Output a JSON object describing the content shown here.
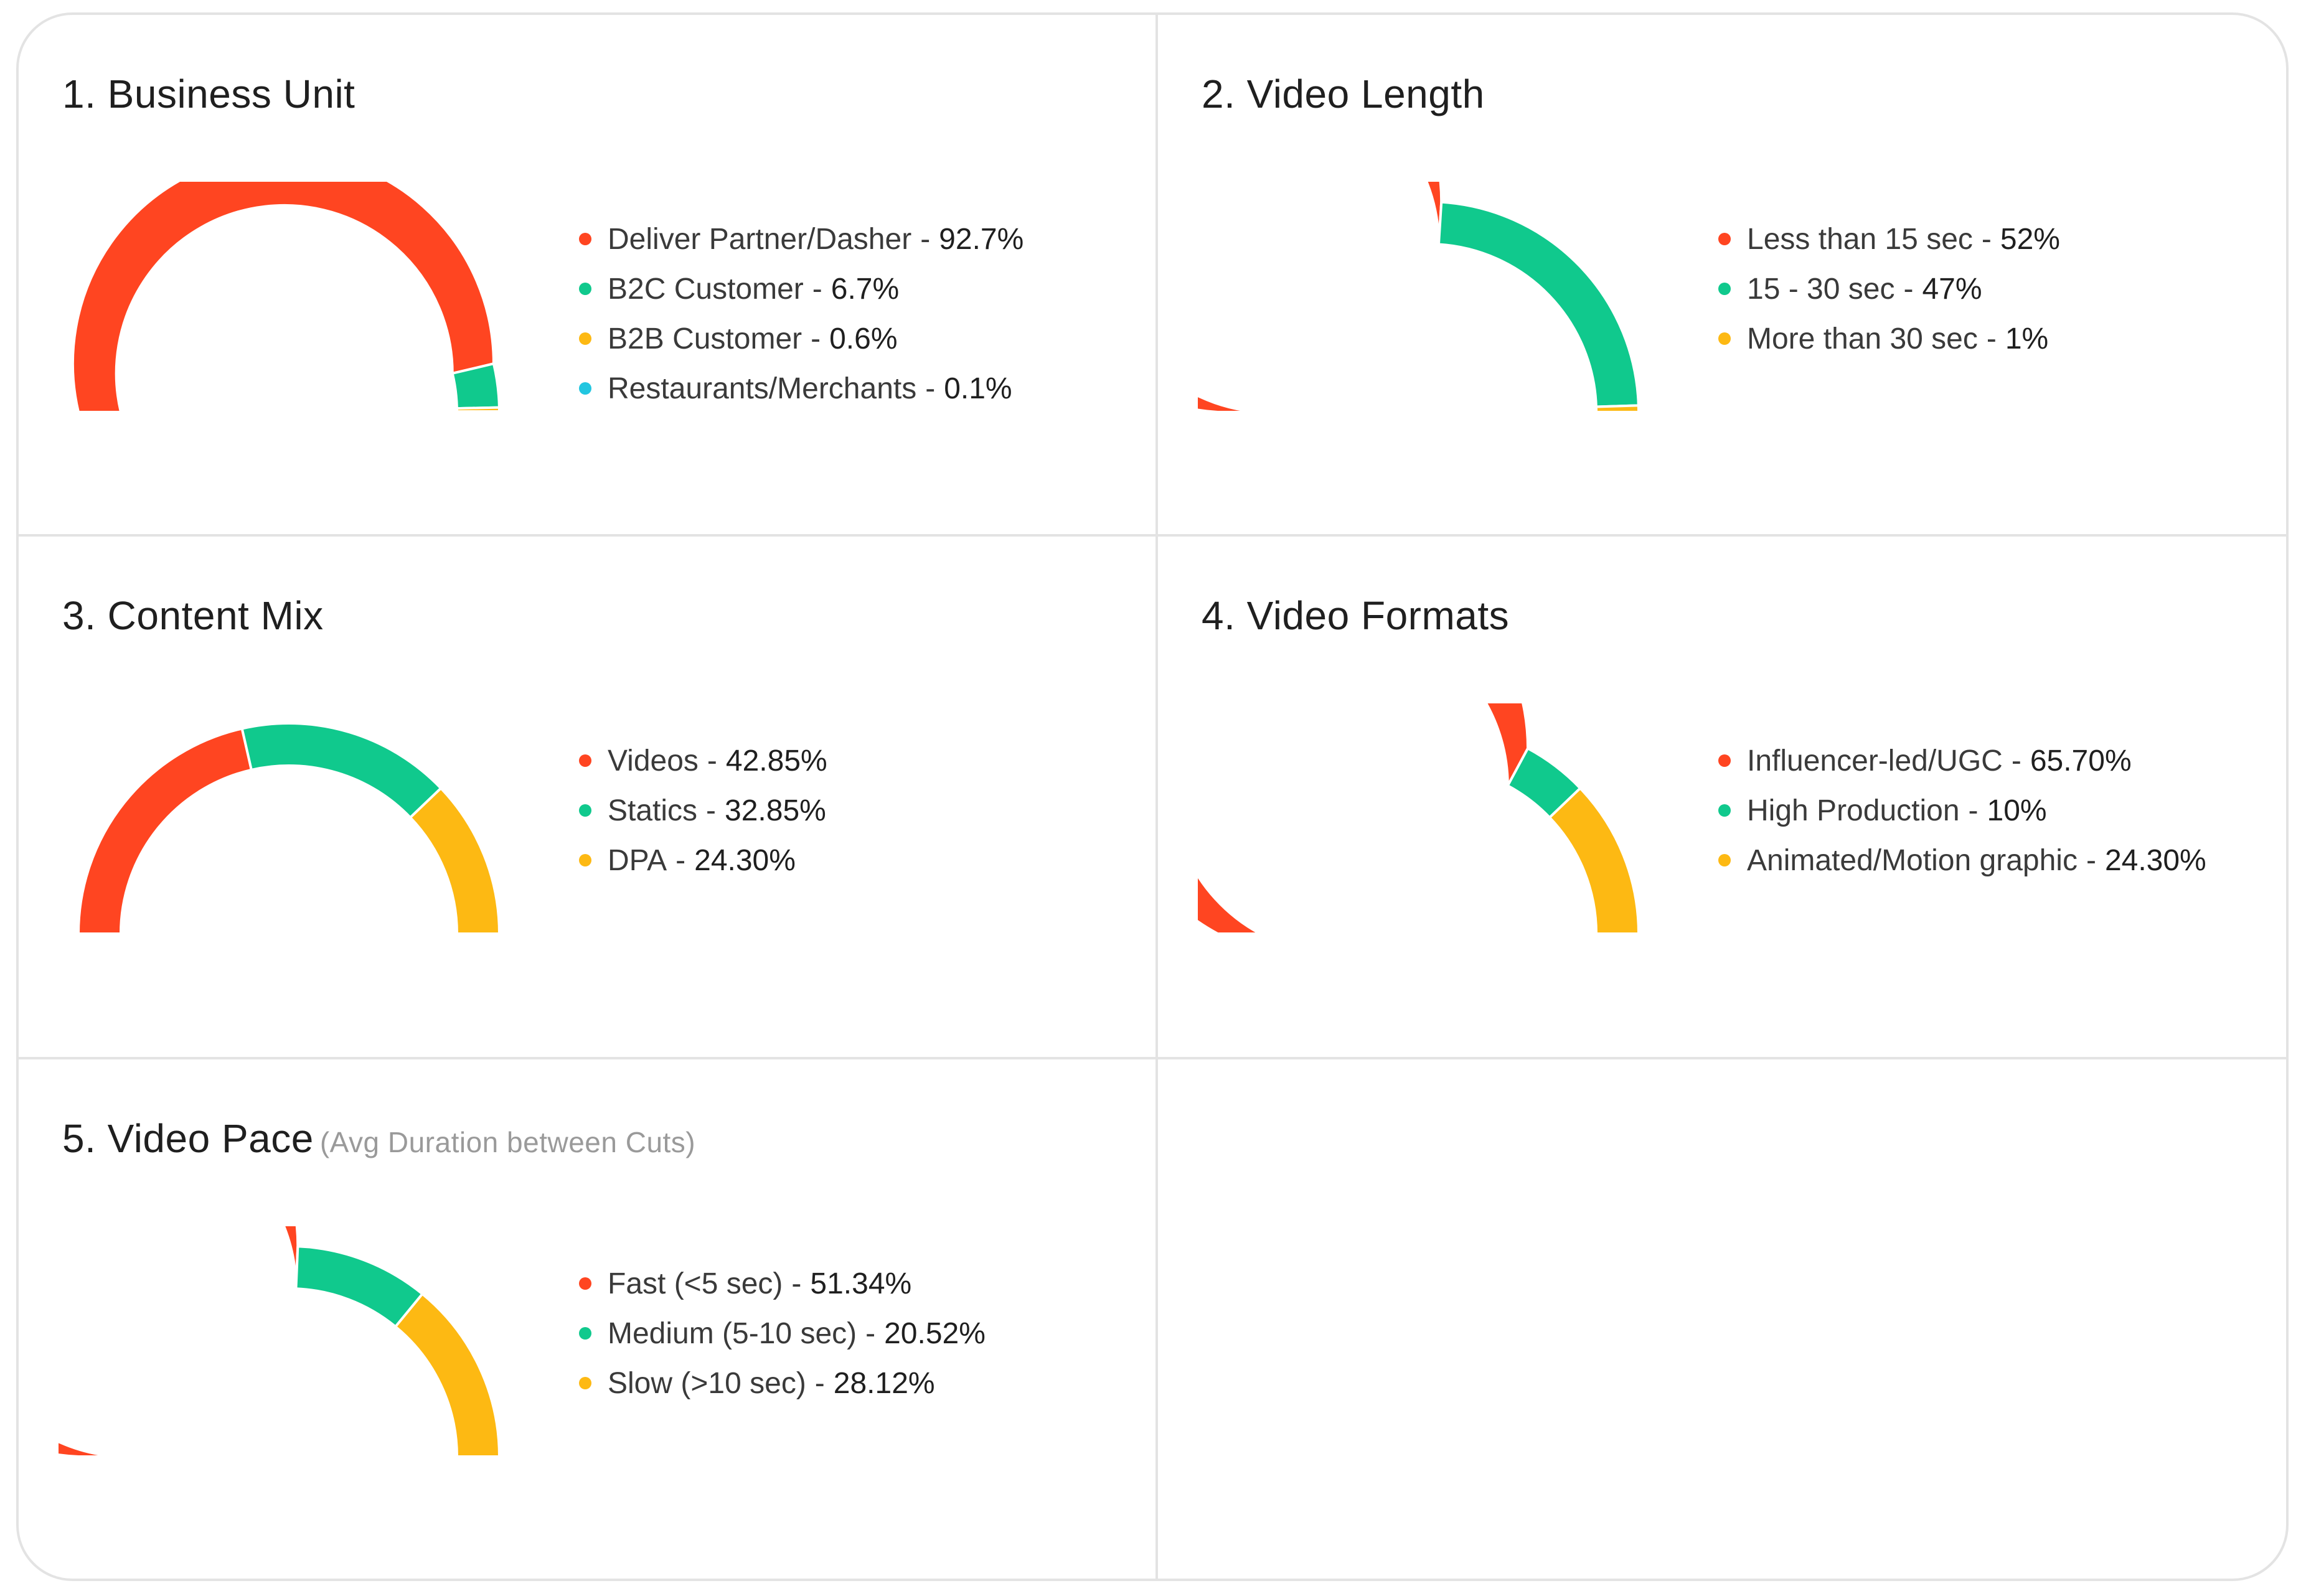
{
  "colors": {
    "red": "#FF4521",
    "green": "#10C98D",
    "yellow": "#FDB913",
    "cyan": "#22C6E0",
    "border": "#E3E3E3"
  },
  "chart_data": [
    {
      "type": "pie",
      "style": "semi-donut",
      "title": "1. Business Unit",
      "categories": [
        "Deliver Partner/Dasher",
        "B2C Customer",
        "B2B Customer",
        "Restaurants/Merchants"
      ],
      "values": [
        92.7,
        6.7,
        0.6,
        0.1
      ],
      "labels": [
        "92.7%",
        "6.7%",
        "0.6%",
        "0.1%"
      ],
      "colors": [
        "#FF4521",
        "#10C98D",
        "#FDB913",
        "#22C6E0"
      ],
      "legend": "right"
    },
    {
      "type": "pie",
      "style": "semi-donut",
      "title": "2. Video Length",
      "categories": [
        "Less than 15 sec",
        "15 - 30 sec",
        "More than 30 sec"
      ],
      "values": [
        52,
        47,
        1
      ],
      "labels": [
        "52%",
        "47%",
        "1%"
      ],
      "colors": [
        "#FF4521",
        "#10C98D",
        "#FDB913"
      ],
      "legend": "right"
    },
    {
      "type": "pie",
      "style": "semi-donut",
      "title": "3. Content Mix",
      "categories": [
        "Videos",
        "Statics",
        "DPA"
      ],
      "values": [
        42.85,
        32.85,
        24.3
      ],
      "labels": [
        "42.85%",
        "32.85%",
        "24.30%"
      ],
      "colors": [
        "#FF4521",
        "#10C98D",
        "#FDB913"
      ],
      "legend": "right"
    },
    {
      "type": "pie",
      "style": "semi-donut",
      "title": "4. Video Formats",
      "categories": [
        "Influencer-led/UGC",
        "High Production",
        "Animated/Motion graphic"
      ],
      "values": [
        65.7,
        10,
        24.3
      ],
      "labels": [
        "65.70%",
        "10%",
        "24.30%"
      ],
      "colors": [
        "#FF4521",
        "#10C98D",
        "#FDB913"
      ],
      "legend": "right"
    },
    {
      "type": "pie",
      "style": "semi-donut",
      "title": "5. Video Pace",
      "subtitle": "(Avg Duration between Cuts)",
      "categories": [
        "Fast (<5 sec)",
        "Medium (5-10 sec)",
        "Slow (>10 sec)"
      ],
      "values": [
        51.34,
        20.52,
        28.12
      ],
      "labels": [
        "51.34%",
        "20.52%",
        "28.12%"
      ],
      "colors": [
        "#FF4521",
        "#10C98D",
        "#FDB913"
      ],
      "legend": "right"
    }
  ]
}
